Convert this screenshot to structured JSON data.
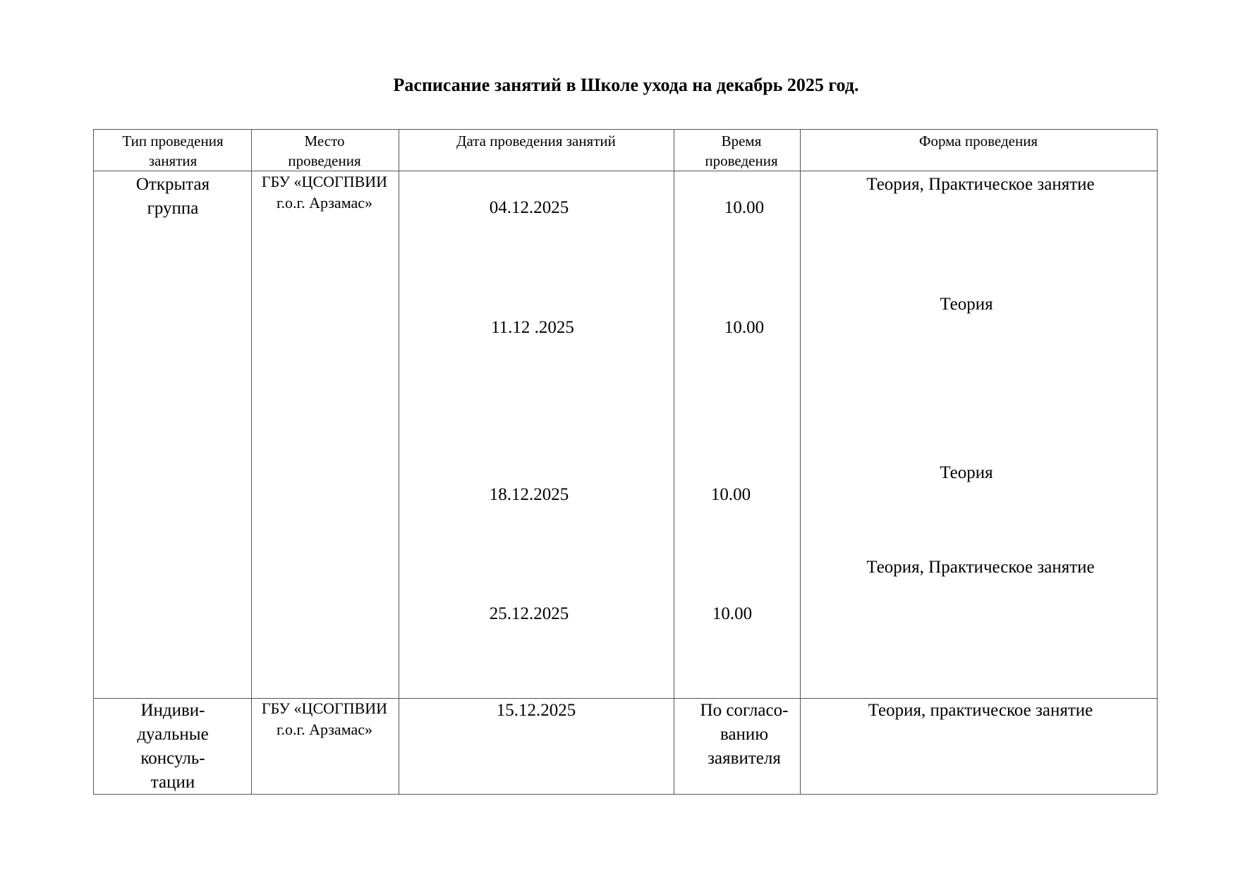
{
  "title": "Расписание занятий в Школе ухода на  декабрь 2025 год.",
  "table": {
    "headers": [
      "Тип проведения занятия",
      "Место проведения",
      "Дата проведения занятий",
      "Время проведения",
      "Форма проведения"
    ],
    "rows": [
      {
        "type": "Открытая группа",
        "place": "ГБУ «ЦСОГПВИИ г.о.г. Арзамас»",
        "sessions": [
          {
            "date": "04.12.2025",
            "time": "10.00",
            "form": "Теория, Практическое занятие"
          },
          {
            "date": "11.12 .2025",
            "time": "10.00",
            "form": "Теория"
          },
          {
            "date": "18.12.2025",
            "time": "10.00",
            "form": "Теория"
          },
          {
            "date": "25.12.2025",
            "time": "10.00",
            "form": "Теория, Практическое занятие"
          }
        ]
      },
      {
        "type": "Индиви-дуальные консуль-тации",
        "place": "ГБУ «ЦСОГПВИИ г.о.г. Арзамас»",
        "sessions": [
          {
            "date": "15.12.2025",
            "time": "По согласо-ванию заявителя",
            "form": "Теория, практическое занятие"
          }
        ]
      }
    ]
  }
}
